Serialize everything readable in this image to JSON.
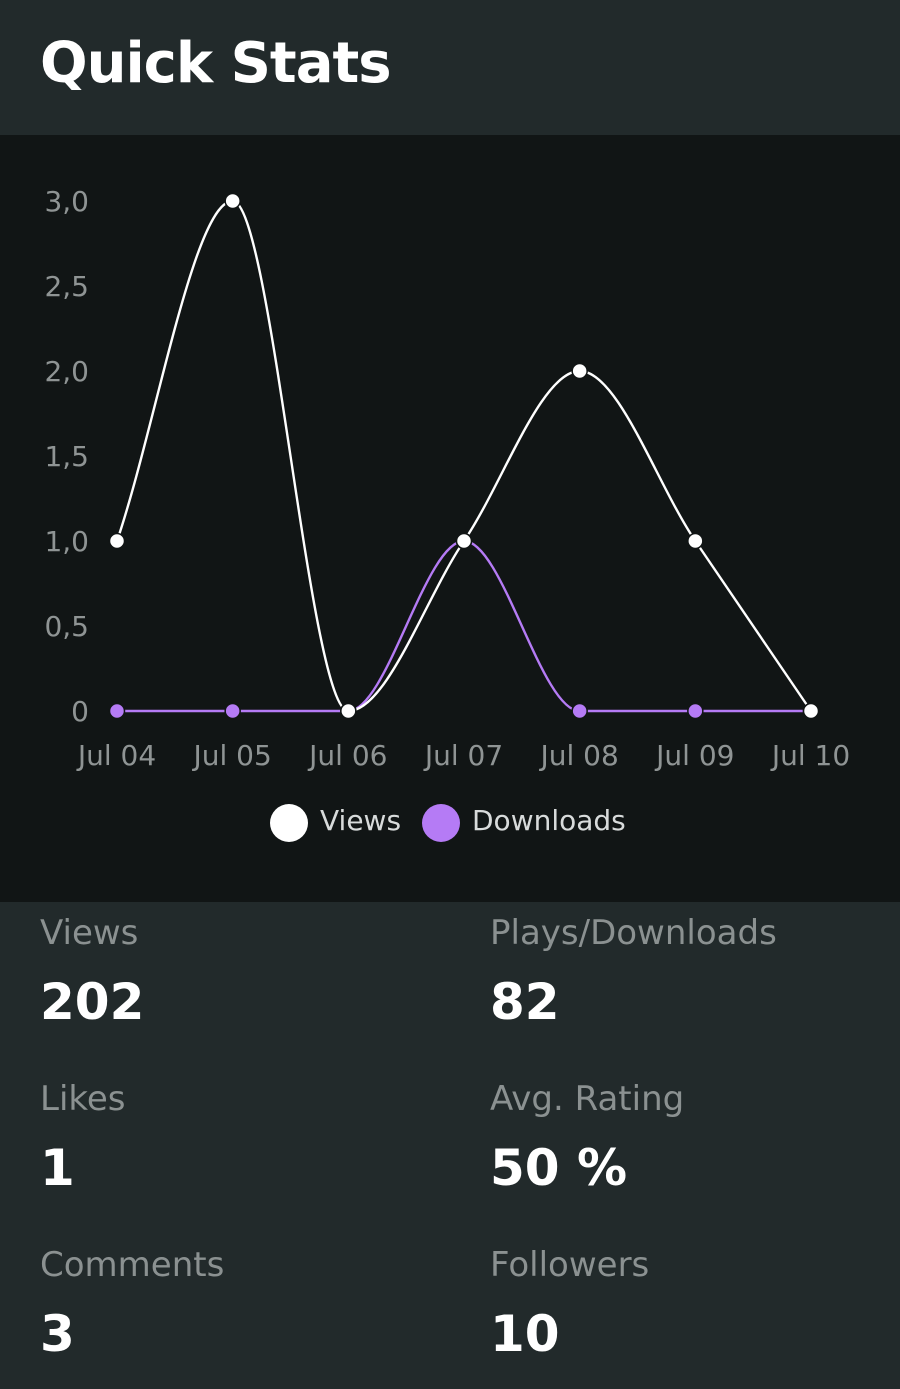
{
  "header": {
    "title": "Quick Stats"
  },
  "colors": {
    "views": "#ffffff",
    "downloads": "#b57bf5",
    "panel_bg": "#111515",
    "page_bg": "#222a2b"
  },
  "chart_data": {
    "type": "line",
    "categories": [
      "Jul 04",
      "Jul 05",
      "Jul 06",
      "Jul 07",
      "Jul 08",
      "Jul 09",
      "Jul 10"
    ],
    "y_ticks": [
      "0",
      "0,5",
      "1,0",
      "1,5",
      "2,0",
      "2,5",
      "3,0"
    ],
    "ylim": [
      0,
      3
    ],
    "series": [
      {
        "name": "Views",
        "color": "#ffffff",
        "values": [
          1,
          3,
          0,
          1,
          2,
          1,
          0
        ]
      },
      {
        "name": "Downloads",
        "color": "#b57bf5",
        "values": [
          0,
          0,
          0,
          1,
          0,
          0,
          0
        ]
      }
    ],
    "legend_position": "bottom",
    "grid": false
  },
  "stats": [
    {
      "label": "Views",
      "value": "202"
    },
    {
      "label": "Plays/Downloads",
      "value": "82"
    },
    {
      "label": "Likes",
      "value": "1"
    },
    {
      "label": "Avg. Rating",
      "value": "50 %"
    },
    {
      "label": "Comments",
      "value": "3"
    },
    {
      "label": "Followers",
      "value": "10"
    }
  ]
}
